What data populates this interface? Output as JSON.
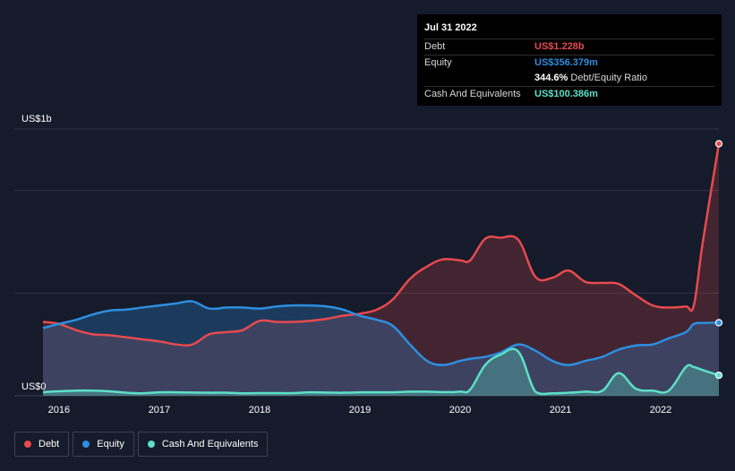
{
  "tooltip": {
    "date": "Jul 31 2022",
    "debt_label": "Debt",
    "debt_value": "US$1.228b",
    "equity_label": "Equity",
    "equity_value": "US$356.379m",
    "ratio_value": "344.6%",
    "ratio_label": "Debt/Equity Ratio",
    "cash_label": "Cash And Equivalents",
    "cash_value": "US$100.386m"
  },
  "legend": {
    "debt": "Debt",
    "equity": "Equity",
    "cash": "Cash And Equivalents"
  },
  "colors": {
    "debt": "#e64a4f",
    "equity": "#2d8ee0",
    "cash": "#5ce0c8",
    "background": "#151b2a"
  },
  "chart_data": {
    "type": "area",
    "y_unit": "US$",
    "ylim": [
      0,
      1.3
    ],
    "y_ticks": [
      {
        "value": 0,
        "label": "US$0"
      },
      {
        "value": 1.3,
        "label": "US$1b"
      }
    ],
    "xlim": [
      2015.84,
      2022.58
    ],
    "x_ticks": [
      "2016",
      "2017",
      "2018",
      "2019",
      "2020",
      "2021",
      "2022"
    ],
    "x_tick_values": [
      2016,
      2017,
      2018,
      2019,
      2020,
      2021,
      2022
    ],
    "series": [
      {
        "name": "Debt",
        "color": "#e64a4f",
        "x": [
          2015.84,
          2016.0,
          2016.17,
          2016.33,
          2016.5,
          2016.67,
          2016.83,
          2017.0,
          2017.17,
          2017.33,
          2017.5,
          2017.67,
          2017.83,
          2018.0,
          2018.17,
          2018.33,
          2018.5,
          2018.67,
          2018.83,
          2019.0,
          2019.17,
          2019.33,
          2019.5,
          2019.67,
          2019.83,
          2020.0,
          2020.1,
          2020.25,
          2020.4,
          2020.58,
          2020.75,
          2020.92,
          2021.08,
          2021.25,
          2021.42,
          2021.58,
          2021.75,
          2021.92,
          2022.08,
          2022.25,
          2022.33,
          2022.42,
          2022.58
        ],
        "y": [
          0.36,
          0.35,
          0.32,
          0.3,
          0.295,
          0.285,
          0.275,
          0.265,
          0.25,
          0.25,
          0.3,
          0.31,
          0.32,
          0.365,
          0.36,
          0.36,
          0.365,
          0.375,
          0.39,
          0.4,
          0.42,
          0.47,
          0.57,
          0.63,
          0.665,
          0.66,
          0.66,
          0.765,
          0.77,
          0.76,
          0.58,
          0.575,
          0.61,
          0.555,
          0.55,
          0.545,
          0.49,
          0.44,
          0.43,
          0.435,
          0.44,
          0.75,
          1.228
        ]
      },
      {
        "name": "Equity",
        "color": "#2d8ee0",
        "x": [
          2015.84,
          2016.0,
          2016.17,
          2016.33,
          2016.5,
          2016.67,
          2016.83,
          2017.0,
          2017.17,
          2017.33,
          2017.5,
          2017.67,
          2017.83,
          2018.0,
          2018.17,
          2018.33,
          2018.5,
          2018.67,
          2018.83,
          2019.0,
          2019.17,
          2019.33,
          2019.5,
          2019.67,
          2019.83,
          2020.0,
          2020.1,
          2020.25,
          2020.4,
          2020.58,
          2020.75,
          2020.92,
          2021.08,
          2021.25,
          2021.42,
          2021.58,
          2021.75,
          2021.92,
          2022.08,
          2022.25,
          2022.33,
          2022.42,
          2022.58
        ],
        "y": [
          0.33,
          0.35,
          0.37,
          0.395,
          0.415,
          0.42,
          0.43,
          0.44,
          0.45,
          0.46,
          0.425,
          0.43,
          0.43,
          0.425,
          0.435,
          0.44,
          0.44,
          0.435,
          0.42,
          0.39,
          0.37,
          0.34,
          0.25,
          0.17,
          0.15,
          0.17,
          0.18,
          0.19,
          0.21,
          0.25,
          0.22,
          0.17,
          0.15,
          0.17,
          0.19,
          0.225,
          0.245,
          0.25,
          0.28,
          0.31,
          0.35,
          0.355,
          0.356
        ]
      },
      {
        "name": "Cash And Equivalents",
        "color": "#5ce0c8",
        "x": [
          2015.84,
          2016.0,
          2016.17,
          2016.33,
          2016.5,
          2016.67,
          2016.83,
          2017.0,
          2017.17,
          2017.33,
          2017.5,
          2017.67,
          2017.83,
          2018.0,
          2018.17,
          2018.33,
          2018.5,
          2018.67,
          2018.83,
          2019.0,
          2019.17,
          2019.33,
          2019.5,
          2019.67,
          2019.83,
          2020.0,
          2020.1,
          2020.25,
          2020.4,
          2020.58,
          2020.75,
          2020.92,
          2021.08,
          2021.25,
          2021.42,
          2021.58,
          2021.75,
          2021.92,
          2022.08,
          2022.25,
          2022.33,
          2022.42,
          2022.58
        ],
        "y": [
          0.018,
          0.022,
          0.025,
          0.025,
          0.022,
          0.015,
          0.012,
          0.017,
          0.017,
          0.016,
          0.015,
          0.015,
          0.012,
          0.013,
          0.013,
          0.013,
          0.017,
          0.016,
          0.015,
          0.017,
          0.017,
          0.017,
          0.02,
          0.02,
          0.018,
          0.02,
          0.03,
          0.15,
          0.2,
          0.215,
          0.02,
          0.012,
          0.015,
          0.02,
          0.025,
          0.11,
          0.035,
          0.025,
          0.025,
          0.14,
          0.14,
          0.125,
          0.1
        ]
      }
    ]
  }
}
